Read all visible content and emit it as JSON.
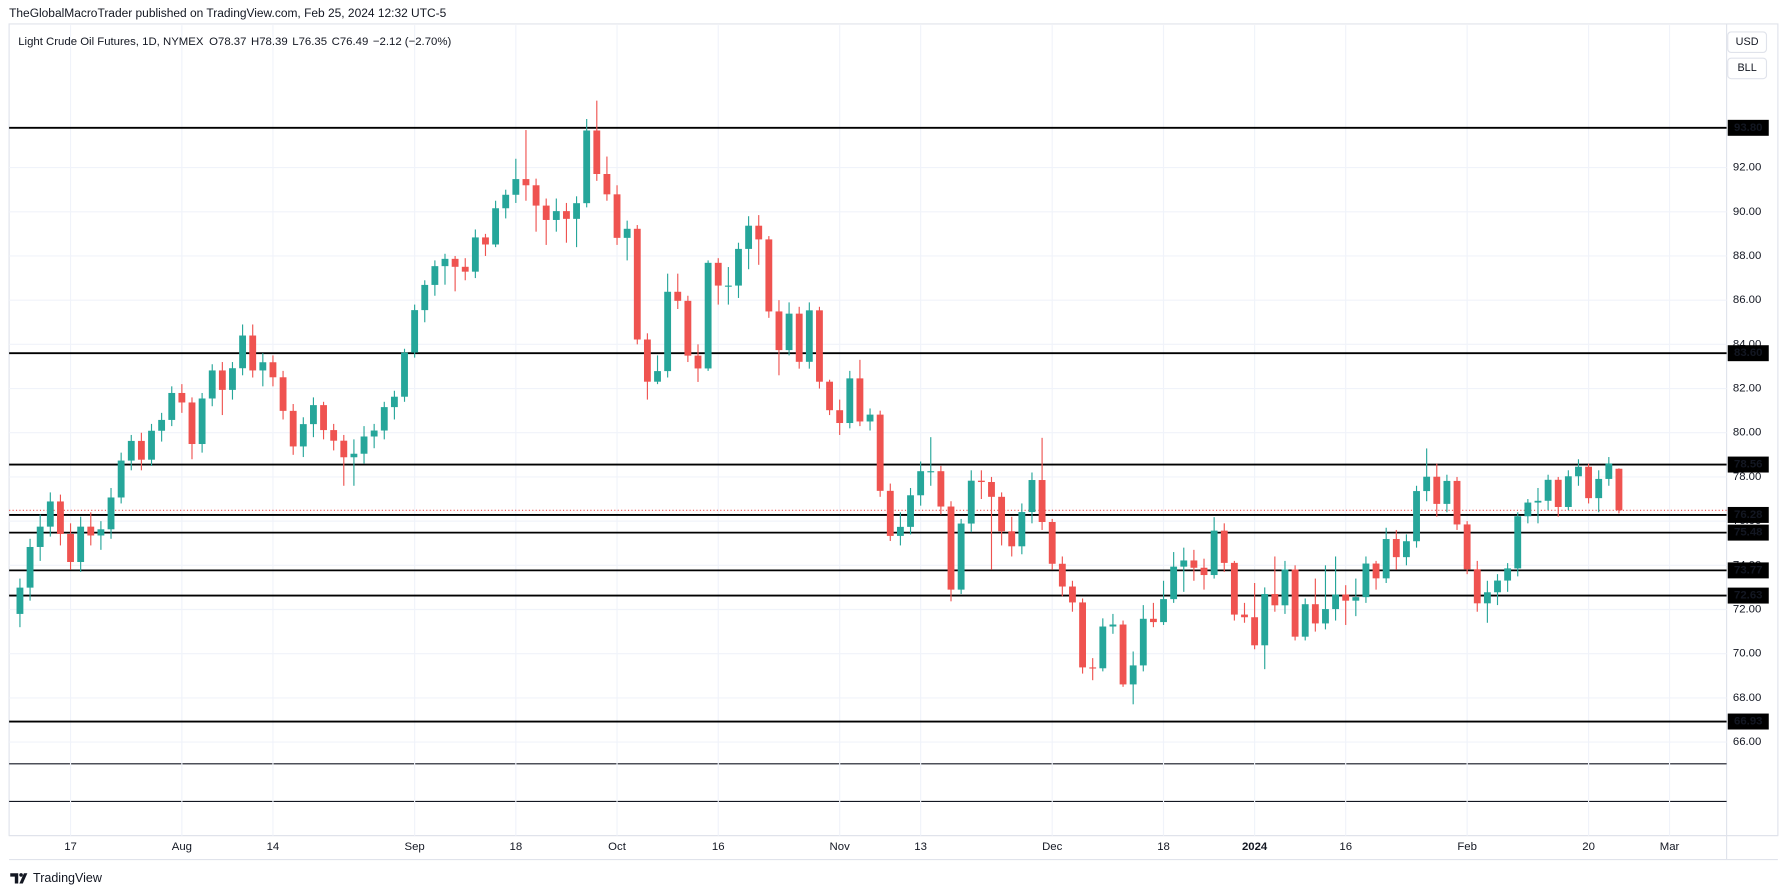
{
  "chart_data": {
    "type": "candlestick",
    "attribution": "TheGlobalMacroTrader published on TradingView.com, Feb 25, 2024 12:32 UTC-5",
    "title": "Light Crude Oil Futures, 1D, NYMEX",
    "ohlc_labels": [
      "O",
      "H",
      "L",
      "C"
    ],
    "ohlc_values": [
      "78.37",
      "78.39",
      "76.35",
      "76.49"
    ],
    "change": "−2.12 (−2.70%)",
    "currency": "USD",
    "unit": "BLL",
    "brand": "TradingView",
    "up_color": "#26a69a",
    "down_color": "#ef5350",
    "grid": true,
    "ylim": [
      65.07,
      98.45
    ],
    "yticks": [
      {
        "value": 66,
        "label": "66.00"
      },
      {
        "value": 68,
        "label": "68.00"
      },
      {
        "value": 70,
        "label": "70.00"
      },
      {
        "value": 72,
        "label": "72.00"
      },
      {
        "value": 74,
        "label": "74.00"
      },
      {
        "value": 76,
        "label": "76.00"
      },
      {
        "value": 78,
        "label": "78.00"
      },
      {
        "value": 80,
        "label": "80.00"
      },
      {
        "value": 82,
        "label": "82.00"
      },
      {
        "value": 84,
        "label": "84.00"
      },
      {
        "value": 86,
        "label": "86.00"
      },
      {
        "value": 88,
        "label": "88.00"
      },
      {
        "value": 90,
        "label": "90.00"
      },
      {
        "value": 92,
        "label": "92.00"
      }
    ],
    "levels": [
      {
        "value": 93.8,
        "label": "93.80"
      },
      {
        "value": 83.6,
        "label": "83.60"
      },
      {
        "value": 78.56,
        "label": "78.56"
      },
      {
        "value": 76.28,
        "label": "76.28"
      },
      {
        "value": 75.48,
        "label": "75.48"
      },
      {
        "value": 73.77,
        "label": "73.77"
      },
      {
        "value": 72.63,
        "label": "72.63"
      },
      {
        "value": 66.93,
        "label": "66.93"
      }
    ],
    "categories": [
      null,
      null,
      null,
      null,
      null,
      "17",
      null,
      null,
      null,
      null,
      null,
      null,
      null,
      null,
      null,
      null,
      "Aug",
      null,
      null,
      null,
      null,
      null,
      null,
      null,
      null,
      "14",
      null,
      null,
      null,
      null,
      null,
      null,
      null,
      null,
      null,
      null,
      null,
      null,
      null,
      "Sep",
      null,
      null,
      null,
      null,
      null,
      null,
      null,
      null,
      null,
      "18",
      null,
      null,
      null,
      null,
      null,
      null,
      null,
      null,
      null,
      "Oct",
      null,
      null,
      null,
      null,
      null,
      null,
      null,
      null,
      null,
      "16",
      null,
      null,
      null,
      null,
      null,
      null,
      null,
      null,
      null,
      null,
      null,
      "Nov",
      null,
      null,
      null,
      null,
      null,
      null,
      null,
      "13",
      null,
      null,
      null,
      null,
      null,
      null,
      null,
      null,
      null,
      null,
      null,
      null,
      "Dec",
      null,
      null,
      null,
      null,
      null,
      null,
      null,
      null,
      null,
      null,
      "18",
      null,
      null,
      null,
      null,
      null,
      null,
      null,
      null,
      "2024",
      null,
      null,
      null,
      null,
      null,
      null,
      null,
      null,
      "16",
      null,
      null,
      null,
      null,
      null,
      null,
      null,
      null,
      null,
      null,
      null,
      "Feb",
      null,
      null,
      null,
      null,
      null,
      null,
      null,
      null,
      null,
      null,
      null,
      "20",
      null,
      null,
      null,
      null,
      null,
      null,
      null,
      "Mar"
    ],
    "open": [
      71.8,
      72.99,
      74.83,
      75.75,
      76.89,
      75.42,
      74.15,
      75.75,
      75.35,
      75.63,
      77.07,
      78.74,
      79.63,
      78.78,
      80.09,
      80.58,
      81.8,
      81.37,
      79.49,
      81.55,
      82.82,
      81.94,
      82.92,
      84.4,
      82.82,
      83.19,
      82.51,
      80.99,
      79.38,
      80.39,
      81.25,
      80.12,
      79.64,
      78.89,
      79.05,
      79.83,
      80.1,
      81.16,
      81.63,
      83.63,
      85.55,
      86.69,
      87.54,
      87.87,
      87.51,
      87.29,
      88.84,
      88.52,
      90.16,
      90.77,
      91.48,
      91.2,
      90.28,
      89.63,
      90.03,
      89.68,
      90.39,
      93.68,
      91.71,
      90.79,
      88.82,
      89.23,
      84.22,
      82.31,
      82.79,
      86.38,
      85.97,
      83.49,
      82.91,
      87.69,
      86.66,
      86.66,
      88.32,
      89.37,
      88.75,
      85.49,
      83.74,
      85.39,
      83.21,
      85.54,
      82.31,
      81.02,
      80.44,
      82.46,
      80.51,
      80.82,
      77.37,
      75.33,
      75.74,
      77.17,
      78.26,
      78.26,
      76.66,
      72.9,
      75.89,
      77.83,
      77.77,
      77.1,
      75.54,
      74.86,
      76.41,
      77.86,
      75.96,
      74.07,
      73.04,
      72.32,
      69.38,
      69.34,
      71.23,
      71.32,
      68.61,
      69.47,
      71.58,
      71.43,
      72.47,
      73.94,
      74.22,
      73.89,
      73.56,
      75.57,
      74.11,
      71.77,
      71.65,
      70.38,
      72.7,
      72.19,
      73.81,
      70.77,
      72.24,
      71.37,
      72.02,
      72.68,
      72.4,
      72.56,
      74.08,
      73.41,
      75.19,
      74.37,
      75.09,
      77.36,
      78.01,
      76.78,
      77.82,
      75.85,
      73.82,
      72.28,
      72.78,
      73.31,
      73.86,
      76.22,
      76.84,
      76.92,
      77.87,
      76.64,
      78.03,
      78.46,
      77.04,
      77.91,
      78.37,
      null,
      null,
      null,
      null,
      null
    ],
    "high": [
      73.4,
      75.2,
      76.3,
      77.3,
      77.2,
      75.9,
      76.2,
      76.4,
      76.0,
      77.5,
      79.1,
      79.9,
      80.0,
      80.4,
      80.9,
      82.1,
      82.2,
      81.6,
      81.8,
      83.1,
      83.2,
      83.2,
      84.9,
      84.9,
      83.6,
      83.5,
      82.8,
      81.3,
      80.7,
      81.6,
      81.4,
      80.4,
      79.9,
      79.7,
      80.3,
      80.4,
      81.4,
      81.9,
      83.8,
      85.8,
      86.9,
      87.8,
      88.1,
      88.0,
      87.9,
      89.2,
      89.0,
      90.5,
      91.0,
      92.4,
      93.7,
      91.5,
      90.6,
      90.6,
      90.4,
      90.7,
      94.2,
      95.03,
      92.5,
      91.2,
      89.6,
      89.4,
      84.5,
      83.5,
      87.2,
      87.2,
      86.2,
      84.0,
      87.8,
      87.9,
      87.5,
      88.6,
      89.8,
      89.85,
      88.9,
      86.0,
      85.9,
      85.7,
      85.9,
      85.7,
      82.4,
      81.5,
      82.8,
      83.3,
      81.1,
      81.0,
      77.7,
      76.4,
      77.5,
      78.7,
      79.8,
      78.5,
      76.9,
      76.1,
      78.3,
      78.3,
      78.0,
      77.3,
      76.2,
      76.8,
      78.2,
      79.77,
      76.1,
      74.4,
      73.3,
      72.5,
      69.8,
      71.6,
      71.8,
      71.5,
      70.1,
      72.2,
      72.3,
      73.3,
      74.6,
      74.8,
      74.7,
      74.3,
      76.18,
      75.9,
      74.2,
      72.3,
      73.2,
      73.0,
      74.4,
      74.2,
      74.0,
      72.5,
      73.4,
      74.0,
      74.4,
      73.1,
      73.4,
      74.4,
      74.2,
      75.7,
      75.6,
      75.4,
      77.6,
      79.29,
      78.6,
      78.1,
      78.0,
      76.0,
      74.2,
      73.3,
      73.6,
      74.1,
      76.4,
      77.0,
      77.5,
      78.1,
      78.0,
      78.3,
      78.8,
      78.6,
      78.3,
      78.9,
      78.39,
      null,
      null,
      null,
      null,
      null
    ],
    "low": [
      71.2,
      72.4,
      74.2,
      75.3,
      74.9,
      73.8,
      73.7,
      74.9,
      74.7,
      75.2,
      76.8,
      78.3,
      78.3,
      78.5,
      79.6,
      80.3,
      80.9,
      78.8,
      79.1,
      81.2,
      80.8,
      81.5,
      82.6,
      82.5,
      82.1,
      82.1,
      80.6,
      79.0,
      78.9,
      79.8,
      79.7,
      79.2,
      77.6,
      77.6,
      78.6,
      79.3,
      79.7,
      80.6,
      81.4,
      83.4,
      85.0,
      86.2,
      86.7,
      86.4,
      86.9,
      87.0,
      88.0,
      88.4,
      89.7,
      90.4,
      90.5,
      89.1,
      88.5,
      89.1,
      88.6,
      88.4,
      90.2,
      91.4,
      90.5,
      88.5,
      87.8,
      84.0,
      81.5,
      82.2,
      82.5,
      85.6,
      83.2,
      82.3,
      82.8,
      85.8,
      85.8,
      86.1,
      87.4,
      87.6,
      85.2,
      82.6,
      83.5,
      82.9,
      82.9,
      82.0,
      80.8,
      79.9,
      80.2,
      80.3,
      80.1,
      77.1,
      75.1,
      74.9,
      75.4,
      76.7,
      77.6,
      76.3,
      72.37,
      72.7,
      75.5,
      77.0,
      73.8,
      74.9,
      74.4,
      74.5,
      75.9,
      75.6,
      73.8,
      72.6,
      71.9,
      69.1,
      68.8,
      69.2,
      70.9,
      68.5,
      67.71,
      69.2,
      71.2,
      71.3,
      72.3,
      72.8,
      73.3,
      72.9,
      73.4,
      73.7,
      71.5,
      71.4,
      70.2,
      69.3,
      71.9,
      71.8,
      70.6,
      70.6,
      71.0,
      71.1,
      71.5,
      71.3,
      71.7,
      72.3,
      72.9,
      73.2,
      73.8,
      74.0,
      74.8,
      76.9,
      76.2,
      76.4,
      75.6,
      73.6,
      71.9,
      71.4,
      72.2,
      72.8,
      73.5,
      75.9,
      75.9,
      76.5,
      76.2,
      76.5,
      77.6,
      76.8,
      76.4,
      77.6,
      76.35,
      null,
      null,
      null,
      null,
      null
    ],
    "close": [
      72.99,
      74.83,
      75.75,
      76.89,
      75.42,
      74.15,
      75.75,
      75.35,
      75.63,
      77.07,
      78.74,
      79.63,
      78.78,
      80.09,
      80.58,
      81.8,
      81.37,
      79.49,
      81.55,
      82.82,
      81.94,
      82.92,
      84.4,
      82.82,
      83.19,
      82.51,
      80.99,
      79.38,
      80.39,
      81.25,
      80.12,
      79.64,
      78.89,
      79.05,
      79.83,
      80.1,
      81.16,
      81.63,
      83.63,
      85.55,
      86.69,
      87.54,
      87.87,
      87.51,
      87.29,
      88.84,
      88.52,
      90.16,
      90.77,
      91.48,
      91.2,
      90.28,
      89.63,
      90.03,
      89.68,
      90.39,
      93.68,
      91.71,
      90.79,
      88.82,
      89.23,
      84.22,
      82.31,
      82.79,
      86.38,
      85.97,
      83.49,
      82.91,
      87.69,
      86.66,
      86.66,
      88.32,
      89.37,
      88.75,
      85.49,
      83.74,
      85.39,
      83.21,
      85.54,
      82.31,
      81.02,
      80.44,
      82.46,
      80.51,
      80.82,
      77.37,
      75.33,
      75.74,
      77.17,
      78.26,
      78.26,
      76.66,
      72.9,
      75.89,
      77.83,
      77.77,
      77.1,
      75.54,
      74.86,
      76.41,
      77.86,
      75.96,
      74.07,
      73.04,
      72.32,
      69.38,
      69.34,
      71.23,
      71.32,
      68.61,
      69.47,
      71.58,
      71.43,
      72.47,
      73.94,
      74.22,
      73.89,
      73.56,
      75.57,
      74.11,
      71.77,
      71.65,
      70.38,
      72.7,
      72.19,
      73.81,
      70.77,
      72.24,
      71.37,
      72.02,
      72.68,
      72.4,
      72.56,
      74.08,
      73.41,
      75.19,
      74.37,
      75.09,
      77.36,
      78.01,
      76.78,
      77.82,
      75.85,
      73.82,
      72.28,
      72.78,
      73.31,
      73.86,
      76.22,
      76.84,
      76.92,
      77.87,
      76.64,
      78.03,
      78.46,
      77.04,
      77.91,
      78.61,
      76.49,
      null,
      null,
      null,
      null,
      null
    ]
  }
}
